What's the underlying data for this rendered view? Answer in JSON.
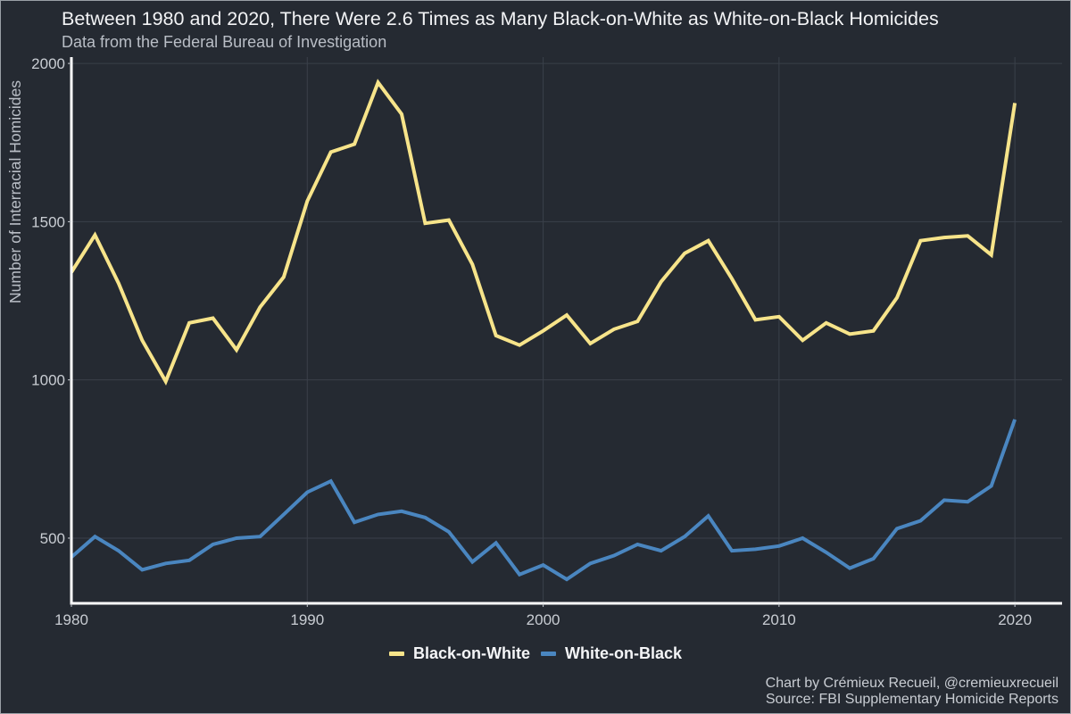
{
  "header": {
    "title": "Between 1980 and 2020, There Were 2.6 Times as Many Black-on-White as White-on-Black Homicides",
    "subtitle": "Data from the Federal Bureau of Investigation"
  },
  "footer": {
    "credit": "Chart by Crémieux Recueil, @cremieuxrecueil",
    "source": "Source: FBI Supplementary Homicide Reports"
  },
  "chart_data": {
    "type": "line",
    "title": "Between 1980 and 2020, There Were 2.6 Times as Many Black-on-White as White-on-Black Homicides",
    "subtitle": "Data from the Federal Bureau of Investigation",
    "xlabel": "",
    "ylabel": "Number of Interracial Homicides",
    "xlim": [
      1980,
      2022
    ],
    "ylim": [
      294,
      2020
    ],
    "xticks": [
      1980,
      1990,
      2000,
      2010,
      2020
    ],
    "xtick_labels": [
      "1980",
      "1990",
      "2000",
      "2010",
      "2020"
    ],
    "yticks": [
      500,
      1000,
      1500,
      2000
    ],
    "ytick_labels": [
      "500",
      "1000",
      "1500",
      "2000"
    ],
    "grid": true,
    "legend_position": "bottom",
    "x": [
      1980,
      1981,
      1982,
      1983,
      1984,
      1985,
      1986,
      1987,
      1988,
      1989,
      1990,
      1991,
      1992,
      1993,
      1994,
      1995,
      1996,
      1997,
      1998,
      1999,
      2000,
      2001,
      2002,
      2003,
      2004,
      2005,
      2006,
      2007,
      2008,
      2009,
      2010,
      2011,
      2012,
      2013,
      2014,
      2015,
      2016,
      2017,
      2018,
      2019,
      2020
    ],
    "series": [
      {
        "name": "Black-on-White",
        "color": "#f7e48a",
        "values": [
          1340,
          1458,
          1305,
          1125,
          995,
          1180,
          1195,
          1095,
          1230,
          1325,
          1565,
          1720,
          1745,
          1940,
          1840,
          1495,
          1505,
          1365,
          1140,
          1110,
          1155,
          1205,
          1115,
          1160,
          1185,
          1310,
          1400,
          1440,
          1320,
          1190,
          1200,
          1125,
          1180,
          1145,
          1155,
          1260,
          1440,
          1450,
          1455,
          1395,
          1875
        ]
      },
      {
        "name": "White-on-Black",
        "color": "#4a86c0",
        "values": [
          440,
          505,
          460,
          400,
          420,
          430,
          480,
          500,
          505,
          575,
          645,
          680,
          550,
          575,
          585,
          565,
          520,
          425,
          485,
          385,
          415,
          370,
          420,
          445,
          480,
          460,
          505,
          570,
          460,
          465,
          475,
          500,
          455,
          405,
          435,
          530,
          555,
          620,
          615,
          665,
          875
        ]
      }
    ]
  }
}
